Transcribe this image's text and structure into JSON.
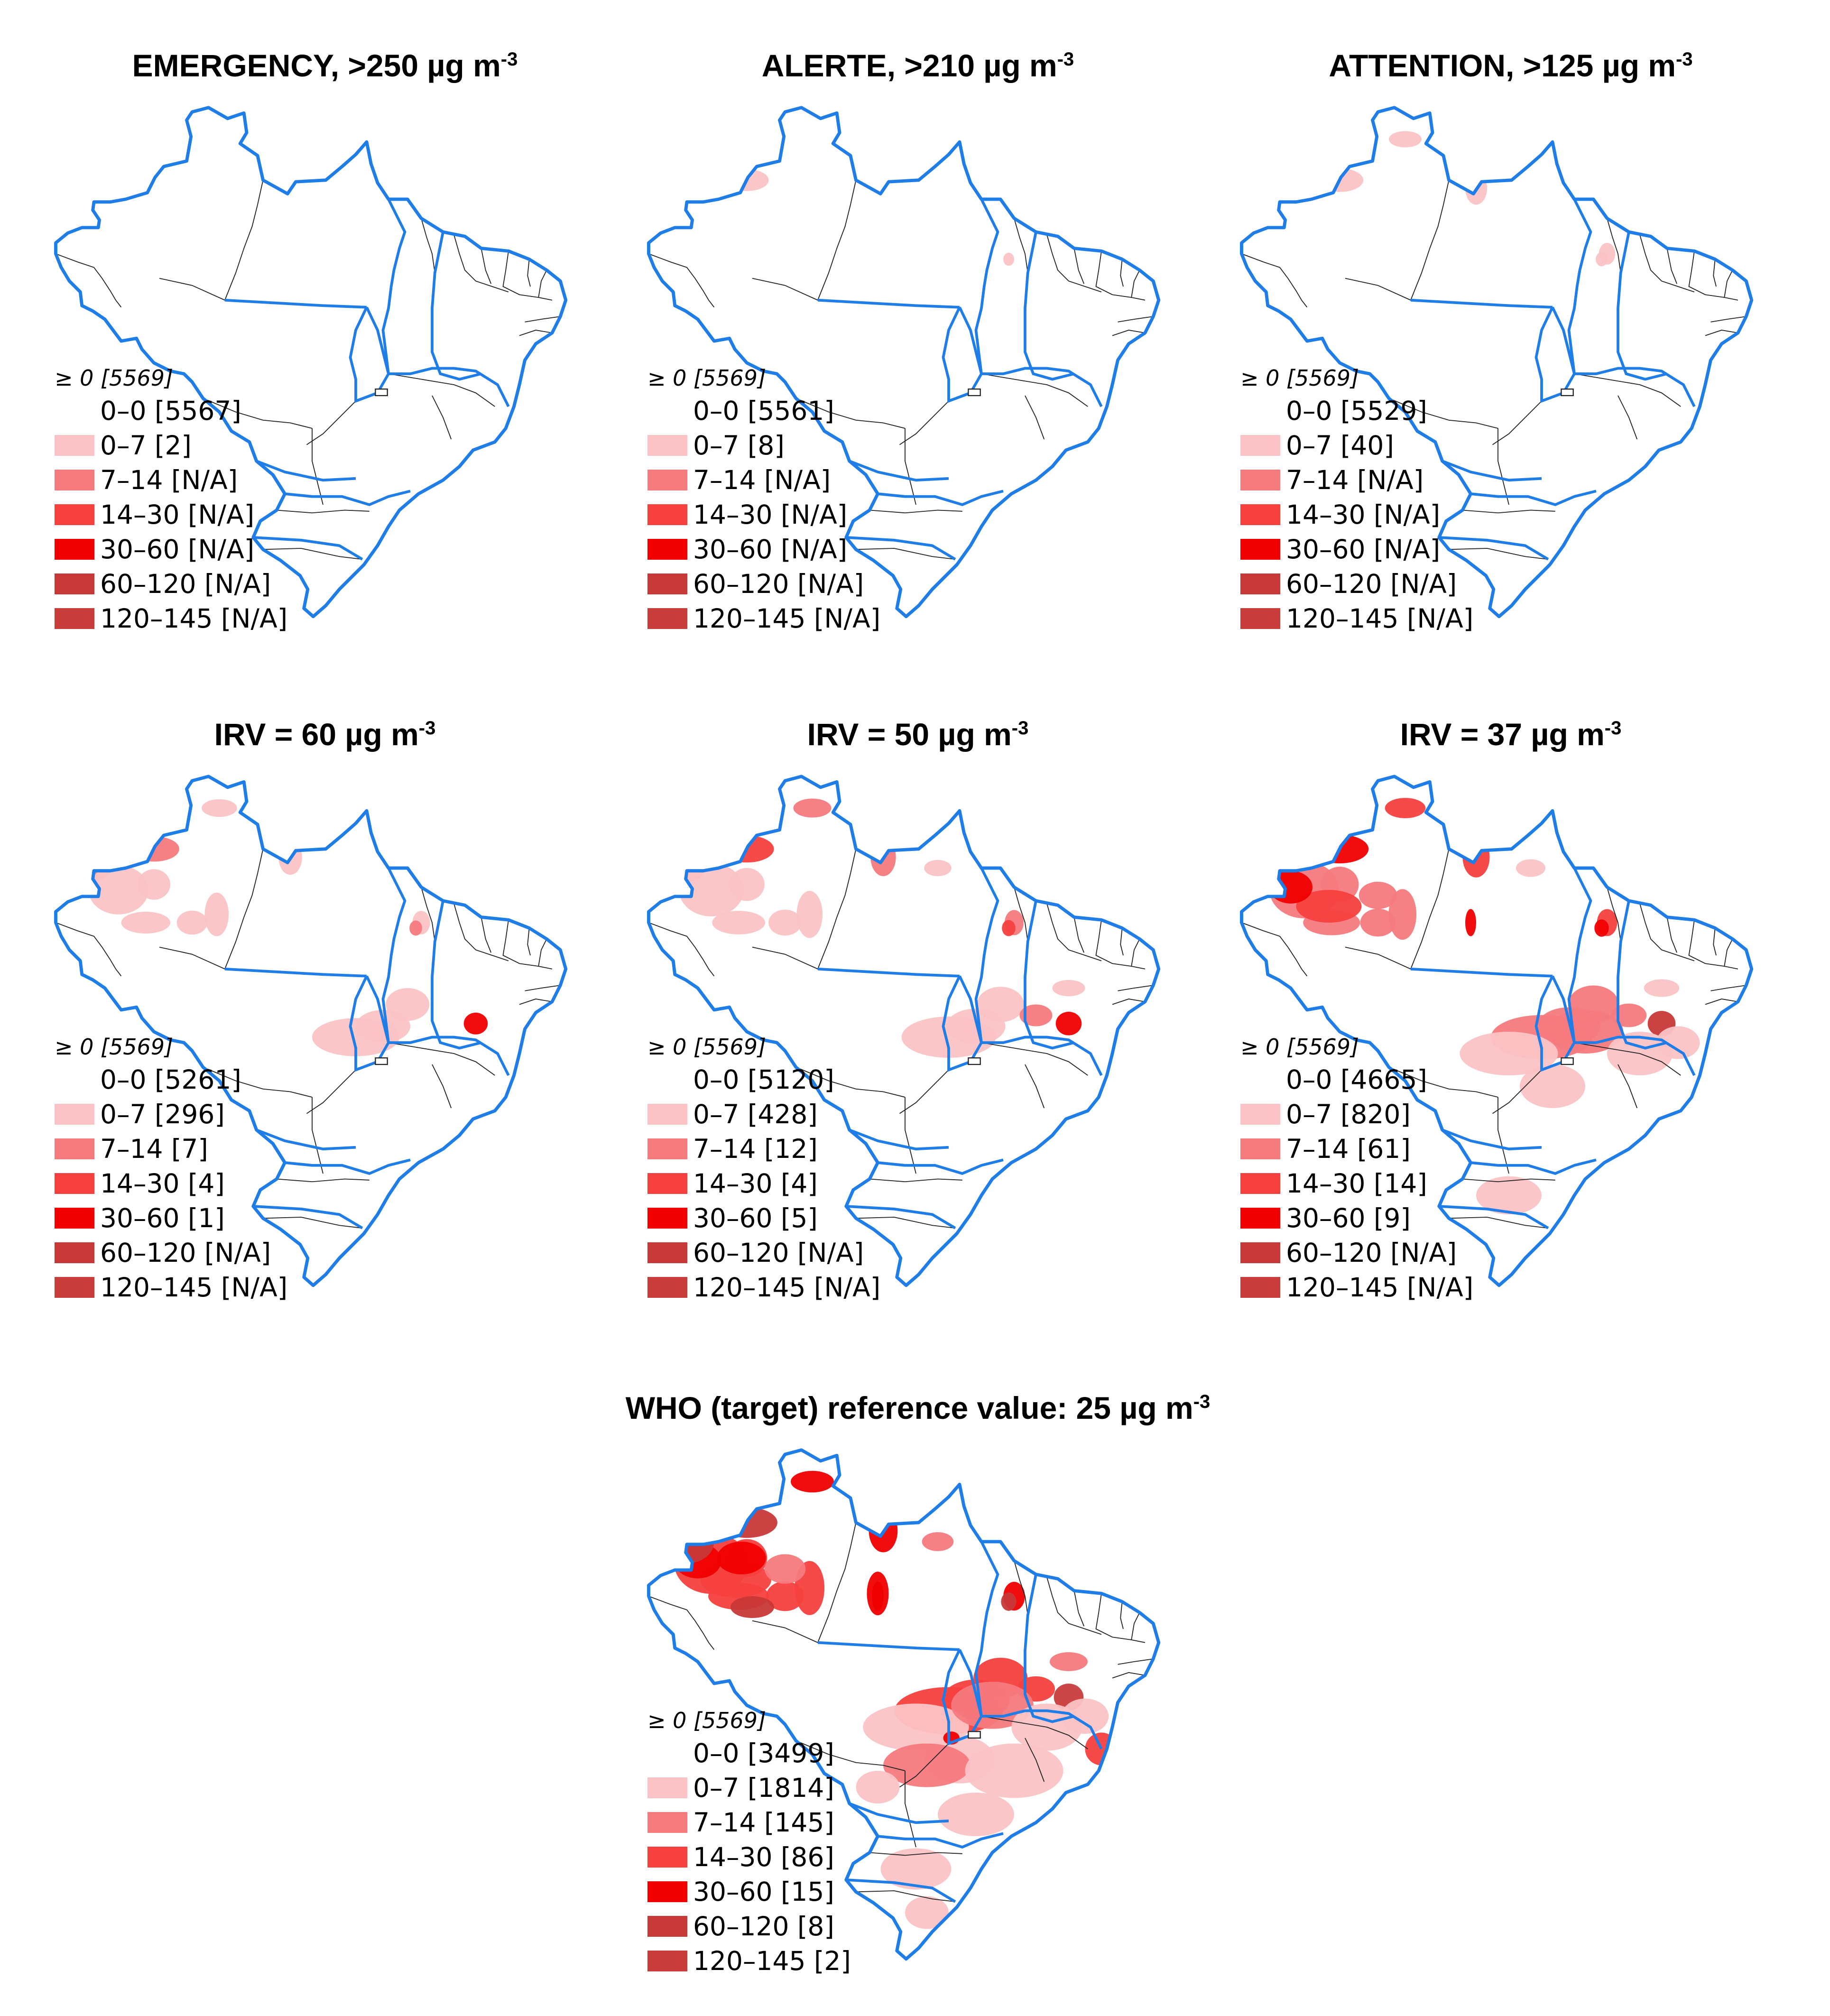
{
  "colors": {
    "border": "#1e7de6",
    "internal_border": "#222222",
    "classes": [
      "#ffffff",
      "#fbc3c5",
      "#f57a7e",
      "#f5403f",
      "#f00000",
      "#c73838",
      "#c83c3c"
    ]
  },
  "panels": [
    {
      "title_main": "EMERGENCY, >250 µg m",
      "title_sup": "-3",
      "legend": {
        "header": "≥ 0 [5569]",
        "items": [
          "0–0 [5567]",
          "0–7 [2]",
          "7–14 [N/A]",
          "14–30 [N/A]",
          "30–60 [N/A]",
          "60–120 [N/A]",
          "120–145 [N/A]"
        ]
      },
      "level": 0
    },
    {
      "title_main": "ALERTE, >210 µg m",
      "title_sup": "-3",
      "legend": {
        "header": "≥ 0 [5569]",
        "items": [
          "0–0 [5561]",
          "0–7 [8]",
          "7–14 [N/A]",
          "14–30 [N/A]",
          "30–60 [N/A]",
          "60–120 [N/A]",
          "120–145 [N/A]"
        ]
      },
      "level": 1
    },
    {
      "title_main": "ATTENTION, >125 µg m",
      "title_sup": "-3",
      "legend": {
        "header": "≥ 0 [5569]",
        "items": [
          "0–0 [5529]",
          "0–7 [40]",
          "7–14 [N/A]",
          "14–30 [N/A]",
          "30–60 [N/A]",
          "60–120 [N/A]",
          "120–145 [N/A]"
        ]
      },
      "level": 2
    },
    {
      "title_main": "IRV = 60 µg m",
      "title_sup": "-3",
      "legend": {
        "header": "≥ 0 [5569]",
        "items": [
          "0–0 [5261]",
          "0–7 [296]",
          "7–14 [7]",
          "14–30 [4]",
          "30–60 [1]",
          "60–120 [N/A]",
          "120–145 [N/A]"
        ]
      },
      "level": 3
    },
    {
      "title_main": "IRV = 50 µg m",
      "title_sup": "-3",
      "legend": {
        "header": "≥ 0 [5569]",
        "items": [
          "0–0 [5120]",
          "0–7 [428]",
          "7–14 [12]",
          "14–30 [4]",
          "30–60 [5]",
          "60–120 [N/A]",
          "120–145 [N/A]"
        ]
      },
      "level": 4
    },
    {
      "title_main": "IRV = 37 µg m",
      "title_sup": "-3",
      "legend": {
        "header": "≥ 0 [5569]",
        "items": [
          "0–0 [4665]",
          "0–7 [820]",
          "7–14 [61]",
          "14–30 [14]",
          "30–60 [9]",
          "60–120 [N/A]",
          "120–145 [N/A]"
        ]
      },
      "level": 5
    },
    {
      "title_main": "WHO (target) reference value: 25 µg m",
      "title_sup": "-3",
      "legend": {
        "header": "≥ 0 [5569]",
        "items": [
          "0–0 [3499]",
          "0–7 [1814]",
          "7–14 [145]",
          "14–30 [86]",
          "30–60 [15]",
          "60–120 [8]",
          "120–145 [2]"
        ]
      },
      "level": 6
    }
  ]
}
